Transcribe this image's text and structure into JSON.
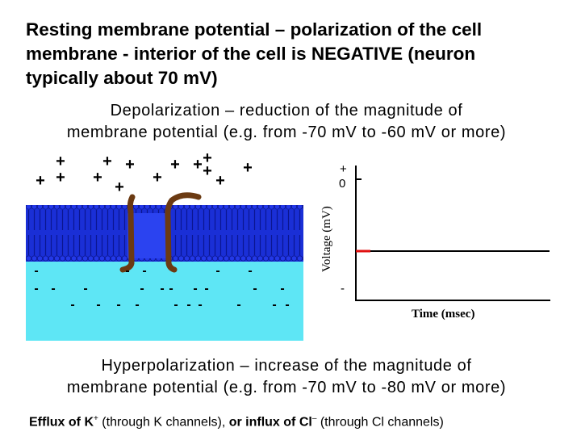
{
  "heading": {
    "line1": "Resting membrane potential – polarization of the cell",
    "line2": "membrane - interior of the cell is NEGATIVE (neuron",
    "line3": "typically about 70 mV)"
  },
  "depolarization": {
    "line1": "Depolarization – reduction of the magnitude of",
    "line2": "membrane potential (e.g. from -70 mV to -60 mV or more)"
  },
  "hyperpolarization": {
    "line1": "Hyperpolarization – increase of the magnitude of",
    "line2": "membrane potential (e.g. from -70 mV to -80 mV or more)"
  },
  "efflux": {
    "part1": "Efflux of K",
    "k_sup": "+",
    "part2": " (through K channels), ",
    "part3": "or influx of Cl",
    "cl_sup": "–",
    "part4": " (through Cl channels)"
  },
  "membrane_diagram": {
    "plus_symbol": "+",
    "minus_symbol": "-",
    "outside_color": "#ffffff",
    "membrane_color": "#1a2fd6",
    "channel_color": "#6b3a12",
    "inside_color": "#5ee6f5"
  },
  "voltage_graph": {
    "ylabel": "Voltage (mV)",
    "xlabel": "Time (msec)",
    "y_top_label": "+",
    "y_zero_label": "0",
    "y_bottom_label": "-",
    "marker_color": "#e01010"
  }
}
